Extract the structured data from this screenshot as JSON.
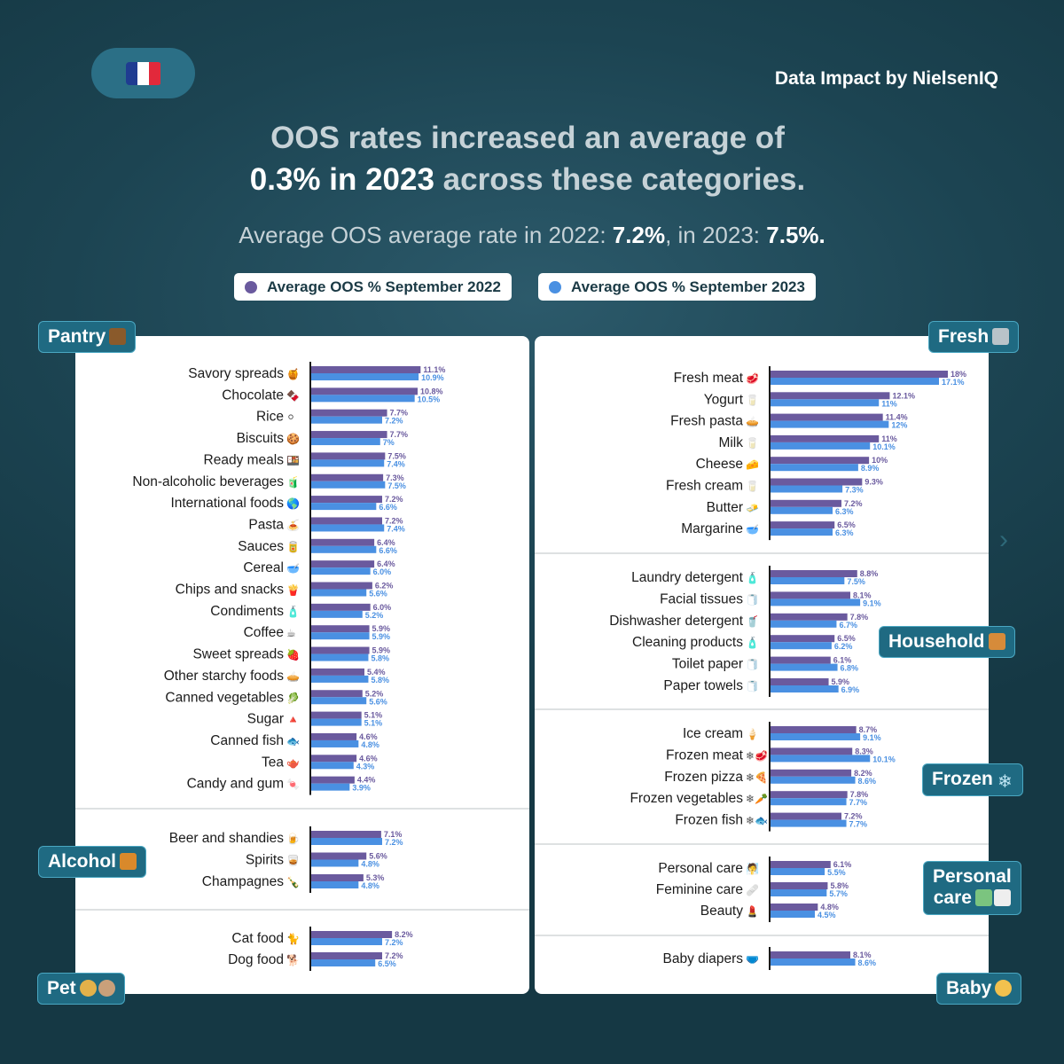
{
  "header": {
    "brand": "Data Impact by NielsenIQ",
    "flag_colors": [
      "#1f3c91",
      "#ffffff",
      "#e2293b"
    ],
    "headline_line1": "OOS rates increased an average of",
    "headline_line2_bold": "0.3% in 2023",
    "headline_line2_rest": " across these categories.",
    "sub_prefix": "Average OOS average rate in 2022: ",
    "sub_v2022": "7.2%",
    "sub_mid": ", in 2023: ",
    "sub_v2023": "7.5%."
  },
  "colors": {
    "series_2022": "#6a5a9e",
    "series_2023": "#4a90e2"
  },
  "chart_data": {
    "type": "bar",
    "orientation": "horizontal",
    "title": "OOS rates increased an average of 0.3% in 2023 across these categories.",
    "subtitle": "Average OOS average rate in 2022: 7.2%, in 2023: 7.5%.",
    "legend": [
      "Average OOS % September 2022",
      "Average OOS % September 2023"
    ],
    "x_max": 18,
    "groups": [
      {
        "name": "Pantry",
        "items": [
          {
            "label": "Savory spreads",
            "emoji": "🍯",
            "v2022": "11.1%",
            "v2023": "10.9%"
          },
          {
            "label": "Chocolate",
            "emoji": "🍫",
            "v2022": "10.8%",
            "v2023": "10.5%"
          },
          {
            "label": "Rice",
            "emoji": "⚪",
            "v2022": "7.7%",
            "v2023": "7.2%"
          },
          {
            "label": "Biscuits",
            "emoji": "🍪",
            "v2022": "7.7%",
            "v2023": "7%"
          },
          {
            "label": "Ready meals",
            "emoji": "🍱",
            "v2022": "7.5%",
            "v2023": "7.4%"
          },
          {
            "label": "Non-alcoholic beverages",
            "emoji": "🧃",
            "v2022": "7.3%",
            "v2023": "7.5%"
          },
          {
            "label": "International foods",
            "emoji": "🌎",
            "v2022": "7.2%",
            "v2023": "6.6%"
          },
          {
            "label": "Pasta",
            "emoji": "🍝",
            "v2022": "7.2%",
            "v2023": "7.4%"
          },
          {
            "label": "Sauces",
            "emoji": "🥫",
            "v2022": "6.4%",
            "v2023": "6.6%"
          },
          {
            "label": "Cereal",
            "emoji": "🥣",
            "v2022": "6.4%",
            "v2023": "6.0%"
          },
          {
            "label": "Chips and snacks",
            "emoji": "🍟",
            "v2022": "6.2%",
            "v2023": "5.6%"
          },
          {
            "label": "Condiments",
            "emoji": "🧴",
            "v2022": "6.0%",
            "v2023": "5.2%"
          },
          {
            "label": "Coffee",
            "emoji": "☕",
            "v2022": "5.9%",
            "v2023": "5.9%"
          },
          {
            "label": "Sweet spreads",
            "emoji": "🍓",
            "v2022": "5.9%",
            "v2023": "5.8%"
          },
          {
            "label": "Other starchy foods",
            "emoji": "🥧",
            "v2022": "5.4%",
            "v2023": "5.8%"
          },
          {
            "label": "Canned vegetables",
            "emoji": "🥬",
            "v2022": "5.2%",
            "v2023": "5.6%"
          },
          {
            "label": "Sugar",
            "emoji": "🔺",
            "v2022": "5.1%",
            "v2023": "5.1%"
          },
          {
            "label": "Canned fish",
            "emoji": "🐟",
            "v2022": "4.6%",
            "v2023": "4.8%"
          },
          {
            "label": "Tea",
            "emoji": "🫖",
            "v2022": "4.6%",
            "v2023": "4.3%"
          },
          {
            "label": "Candy and gum",
            "emoji": "🍬",
            "v2022": "4.4%",
            "v2023": "3.9%"
          }
        ]
      },
      {
        "name": "Alcohol",
        "items": [
          {
            "label": "Beer and shandies",
            "emoji": "🍺",
            "v2022": "7.1%",
            "v2023": "7.2%"
          },
          {
            "label": "Spirits",
            "emoji": "🥃",
            "v2022": "5.6%",
            "v2023": "4.8%"
          },
          {
            "label": "Champagnes",
            "emoji": "🍾",
            "v2022": "5.3%",
            "v2023": "4.8%"
          }
        ]
      },
      {
        "name": "Pet",
        "items": [
          {
            "label": "Cat food",
            "emoji": "🐈",
            "v2022": "8.2%",
            "v2023": "7.2%"
          },
          {
            "label": "Dog food",
            "emoji": "🐕",
            "v2022": "7.2%",
            "v2023": "6.5%"
          }
        ]
      },
      {
        "name": "Fresh",
        "items": [
          {
            "label": "Fresh meat",
            "emoji": "🥩",
            "v2022": "18%",
            "v2023": "17.1%"
          },
          {
            "label": "Yogurt",
            "emoji": "🥛",
            "v2022": "12.1%",
            "v2023": "11%"
          },
          {
            "label": "Fresh pasta",
            "emoji": "🥧",
            "v2022": "11.4%",
            "v2023": "12%"
          },
          {
            "label": "Milk",
            "emoji": "🥛",
            "v2022": "11%",
            "v2023": "10.1%"
          },
          {
            "label": "Cheese",
            "emoji": "🧀",
            "v2022": "10%",
            "v2023": "8.9%"
          },
          {
            "label": "Fresh cream",
            "emoji": "🥛",
            "v2022": "9.3%",
            "v2023": "7.3%"
          },
          {
            "label": "Butter",
            "emoji": "🧈",
            "v2022": "7.2%",
            "v2023": "6.3%"
          },
          {
            "label": "Margarine",
            "emoji": "🥣",
            "v2022": "6.5%",
            "v2023": "6.3%"
          }
        ]
      },
      {
        "name": "Household",
        "items": [
          {
            "label": "Laundry detergent",
            "emoji": "🧴",
            "v2022": "8.8%",
            "v2023": "7.5%"
          },
          {
            "label": "Facial tissues",
            "emoji": "🧻",
            "v2022": "8.1%",
            "v2023": "9.1%"
          },
          {
            "label": "Dishwasher detergent",
            "emoji": "🥤",
            "v2022": "7.8%",
            "v2023": "6.7%"
          },
          {
            "label": "Cleaning products",
            "emoji": "🧴",
            "v2022": "6.5%",
            "v2023": "6.2%"
          },
          {
            "label": "Toilet paper",
            "emoji": "🧻",
            "v2022": "6.1%",
            "v2023": "6.8%"
          },
          {
            "label": "Paper towels",
            "emoji": "🧻",
            "v2022": "5.9%",
            "v2023": "6.9%"
          }
        ]
      },
      {
        "name": "Frozen",
        "items": [
          {
            "label": "Ice cream",
            "emoji": "🍦",
            "v2022": "8.7%",
            "v2023": "9.1%"
          },
          {
            "label": "Frozen meat",
            "emoji": "❄🥩",
            "v2022": "8.3%",
            "v2023": "10.1%"
          },
          {
            "label": "Frozen pizza",
            "emoji": "❄🍕",
            "v2022": "8.2%",
            "v2023": "8.6%"
          },
          {
            "label": "Frozen vegetables",
            "emoji": "❄🥕",
            "v2022": "7.8%",
            "v2023": "7.7%"
          },
          {
            "label": "Frozen fish",
            "emoji": "❄🐟",
            "v2022": "7.2%",
            "v2023": "7.7%"
          }
        ]
      },
      {
        "name": "Personal care",
        "items": [
          {
            "label": "Personal care",
            "emoji": "🧖",
            "v2022": "6.1%",
            "v2023": "5.5%"
          },
          {
            "label": "Feminine care",
            "emoji": "🩹",
            "v2022": "5.8%",
            "v2023": "5.7%"
          },
          {
            "label": "Beauty",
            "emoji": "💄",
            "v2022": "4.8%",
            "v2023": "4.5%"
          }
        ]
      },
      {
        "name": "Baby",
        "items": [
          {
            "label": "Baby diapers",
            "emoji": "🩲",
            "v2022": "8.1%",
            "v2023": "8.6%"
          }
        ]
      }
    ]
  },
  "tags": {
    "pantry": "Pantry",
    "alcohol": "Alcohol",
    "pet": "Pet",
    "fresh": "Fresh",
    "household": "Household",
    "frozen": "Frozen",
    "personal_care_line1": "Personal",
    "personal_care_line2": "care",
    "baby": "Baby"
  },
  "nav": {
    "next_arrow": "›"
  }
}
